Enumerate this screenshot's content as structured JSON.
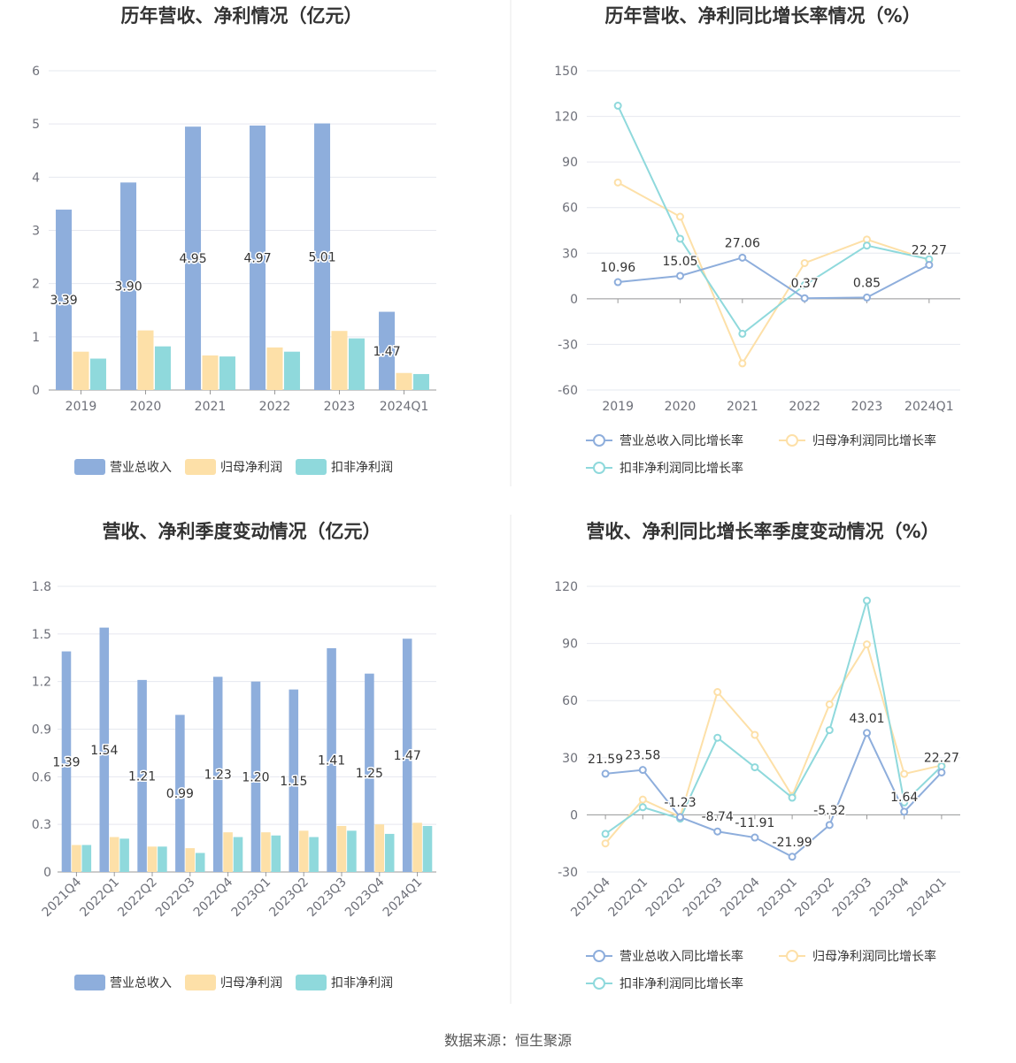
{
  "colors": {
    "revenue": "#8eaedc",
    "net_profit": "#fde0a8",
    "deducted_profit": "#8fd9dc",
    "grid": "#e6e8ef",
    "axis": "#6e7079",
    "zero_line": "#999999",
    "divider": "#e8e8e8"
  },
  "footer": "数据来源：恒生聚源",
  "chart_data": [
    {
      "type": "bar",
      "title": "历年营收、净利情况（亿元）",
      "categories": [
        "2019",
        "2020",
        "2021",
        "2022",
        "2023",
        "2024Q1"
      ],
      "ylim": [
        0,
        6
      ],
      "yticks": [
        0,
        1,
        2,
        3,
        4,
        5,
        6
      ],
      "series": [
        {
          "name": "营业总收入",
          "values": [
            3.39,
            3.9,
            4.95,
            4.97,
            5.01,
            1.47
          ],
          "labels": [
            "3.39",
            "3.90",
            "4.95",
            "4.97",
            "5.01",
            "1.47"
          ]
        },
        {
          "name": "归母净利润",
          "values": [
            0.72,
            1.12,
            0.65,
            0.8,
            1.11,
            0.32
          ]
        },
        {
          "name": "扣非净利润",
          "values": [
            0.59,
            0.82,
            0.63,
            0.72,
            0.97,
            0.3
          ]
        }
      ],
      "legend": [
        "营业总收入",
        "归母净利润",
        "扣非净利润"
      ]
    },
    {
      "type": "line",
      "title": "历年营收、净利同比增长率情况（%）",
      "categories": [
        "2019",
        "2020",
        "2021",
        "2022",
        "2023",
        "2024Q1"
      ],
      "ylim": [
        -60,
        150
      ],
      "yticks": [
        -60,
        -30,
        0,
        30,
        60,
        90,
        120,
        150
      ],
      "series": [
        {
          "name": "营业总收入同比增长率",
          "values": [
            10.96,
            15.05,
            27.06,
            0.37,
            0.85,
            22.27
          ],
          "labels": [
            "10.96",
            "15.05",
            "27.06",
            "0.37",
            "0.85",
            "22.27"
          ]
        },
        {
          "name": "归母净利润同比增长率",
          "values": [
            76.5,
            54.0,
            -42.5,
            23.5,
            39.0,
            25.5
          ]
        },
        {
          "name": "扣非净利润同比增长率",
          "values": [
            127.0,
            39.5,
            -23.0,
            9.0,
            35.0,
            26.0
          ]
        }
      ],
      "legend": [
        "营业总收入同比增长率",
        "归母净利润同比增长率",
        "扣非净利润同比增长率"
      ]
    },
    {
      "type": "bar",
      "title": "营收、净利季度变动情况（亿元）",
      "categories": [
        "2021Q4",
        "2022Q1",
        "2022Q2",
        "2022Q3",
        "2022Q4",
        "2023Q1",
        "2023Q2",
        "2023Q3",
        "2023Q4",
        "2024Q1"
      ],
      "ylim": [
        0,
        1.8
      ],
      "yticks": [
        "0",
        "0.3",
        "0.6",
        "0.9",
        "1.2",
        "1.5",
        "1.8"
      ],
      "series": [
        {
          "name": "营业总收入",
          "values": [
            1.39,
            1.54,
            1.21,
            0.99,
            1.23,
            1.2,
            1.15,
            1.41,
            1.25,
            1.47
          ],
          "labels": [
            "1.39",
            "1.54",
            "1.21",
            "0.99",
            "1.23",
            "1.20",
            "1.15",
            "1.41",
            "1.25",
            "1.47"
          ]
        },
        {
          "name": "归母净利润",
          "values": [
            0.17,
            0.22,
            0.16,
            0.15,
            0.25,
            0.25,
            0.26,
            0.29,
            0.3,
            0.31
          ]
        },
        {
          "name": "扣非净利润",
          "values": [
            0.17,
            0.21,
            0.16,
            0.12,
            0.22,
            0.23,
            0.22,
            0.26,
            0.24,
            0.29
          ]
        }
      ],
      "legend": [
        "营业总收入",
        "归母净利润",
        "扣非净利润"
      ]
    },
    {
      "type": "line",
      "title": "营收、净利同比增长率季度变动情况（%）",
      "categories": [
        "2021Q4",
        "2022Q1",
        "2022Q2",
        "2022Q3",
        "2022Q4",
        "2023Q1",
        "2023Q2",
        "2023Q3",
        "2023Q4",
        "2024Q1"
      ],
      "ylim": [
        -30,
        120
      ],
      "yticks": [
        -30,
        0,
        30,
        60,
        90,
        120
      ],
      "series": [
        {
          "name": "营业总收入同比增长率",
          "values": [
            21.59,
            23.58,
            -1.23,
            -8.74,
            -11.91,
            -21.99,
            -5.32,
            43.01,
            1.64,
            22.27
          ],
          "labels": [
            "21.59",
            "23.58",
            "-1.23",
            "-8.74",
            "-11.91",
            "-21.99",
            "-5.32",
            "43.01",
            "1.64",
            "22.27"
          ]
        },
        {
          "name": "归母净利润同比增长率",
          "values": [
            -15.0,
            8.0,
            -1.0,
            64.5,
            42.0,
            10.0,
            58.0,
            89.5,
            21.5,
            26.0
          ]
        },
        {
          "name": "扣非净利润同比增长率",
          "values": [
            -10.0,
            4.0,
            -2.0,
            40.5,
            25.0,
            9.0,
            44.5,
            112.5,
            6.5,
            25.5
          ]
        }
      ],
      "legend": [
        "营业总收入同比增长率",
        "归母净利润同比增长率",
        "扣非净利润同比增长率"
      ]
    }
  ]
}
